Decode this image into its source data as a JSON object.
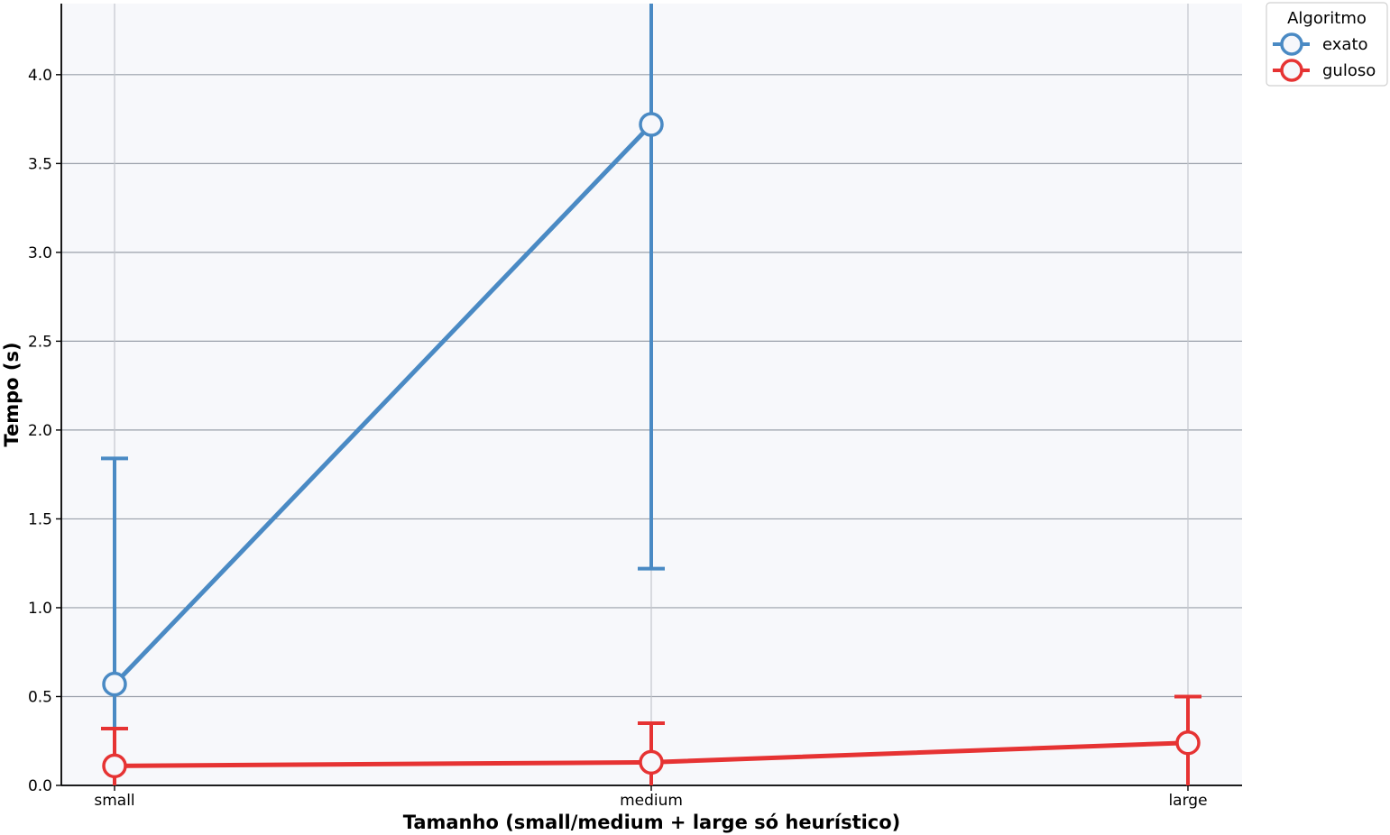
{
  "chart_data": {
    "type": "line",
    "categories": [
      "small",
      "medium",
      "large"
    ],
    "xlabel": "Tamanho (small/medium + large só heurístico)",
    "ylabel": "Tempo (s)",
    "ylim": [
      0,
      4.4
    ],
    "yticks": [
      "0.0",
      "0.5",
      "1.0",
      "1.5",
      "2.0",
      "2.5",
      "3.0",
      "3.5",
      "4.0"
    ],
    "grid": true,
    "legend": {
      "title": "Algoritmo",
      "placement": "outside top-right"
    },
    "series": [
      {
        "name": "exato",
        "color": "#4a8ac4",
        "points": [
          {
            "category": "small",
            "value": 0.57,
            "err_low": 0.0,
            "err_high": 1.84
          },
          {
            "category": "medium",
            "value": 3.72,
            "err_low": 1.22,
            "err_high": 4.4
          }
        ]
      },
      {
        "name": "guloso",
        "color": "#e63333",
        "points": [
          {
            "category": "small",
            "value": 0.11,
            "err_low": 0.0,
            "err_high": 0.32
          },
          {
            "category": "medium",
            "value": 0.13,
            "err_low": 0.0,
            "err_high": 0.35
          },
          {
            "category": "large",
            "value": 0.24,
            "err_low": 0.0,
            "err_high": 0.5
          }
        ]
      }
    ]
  }
}
